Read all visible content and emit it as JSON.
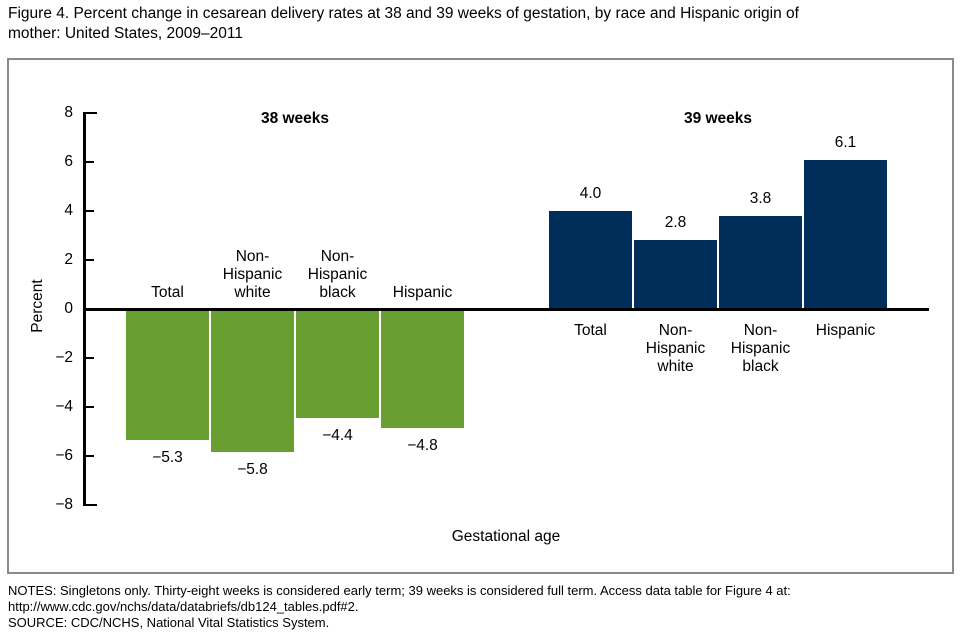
{
  "figure": {
    "title": "Figure 4. Percent change in cesarean delivery rates at 38 and 39 weeks of gestation, by race and Hispanic origin of\nmother: United States, 2009–2011",
    "notes": "NOTES: Singletons only. Thirty-eight weeks is considered early term; 39 weeks is considered full term. Access data table for Figure 4 at:\nhttp://www.cdc.gov/nchs/data/databriefs/db124_tables.pdf#2.",
    "source": "SOURCE: CDC/NCHS, National Vital Statistics System."
  },
  "chart_data": {
    "type": "bar",
    "title": "",
    "xlabel": "Gestational age",
    "ylabel": "Percent",
    "ylim": [
      -8,
      8
    ],
    "grid": false,
    "legend_position": "none",
    "axis_color": "#000000",
    "frame_color": "#8a8a8a",
    "yticks": [
      {
        "value": 8,
        "label": "8"
      },
      {
        "value": 6,
        "label": "6"
      },
      {
        "value": 4,
        "label": "4"
      },
      {
        "value": 2,
        "label": "2"
      },
      {
        "value": 0,
        "label": "0"
      },
      {
        "value": -2,
        "label": "−2"
      },
      {
        "value": -4,
        "label": "−4"
      },
      {
        "value": -6,
        "label": "−6"
      },
      {
        "value": -8,
        "label": "−8"
      }
    ],
    "groups": [
      {
        "label": "38 weeks",
        "color": "#699f31",
        "categories": [
          "Total",
          "Non-\nHispanic\nwhite",
          "Non-\nHispanic\nblack",
          "Hispanic"
        ],
        "values": [
          -5.3,
          -5.8,
          -4.4,
          -4.8
        ],
        "value_labels": [
          "−5.3",
          "−5.8",
          "−4.4",
          "−4.8"
        ]
      },
      {
        "label": "39 weeks",
        "color": "#002d5a",
        "categories": [
          "Total",
          "Non-\nHispanic\nwhite",
          "Non-\nHispanic\nblack",
          "Hispanic"
        ],
        "values": [
          4.0,
          2.8,
          3.8,
          6.1
        ],
        "value_labels": [
          "4.0",
          "2.8",
          "3.8",
          "6.1"
        ]
      }
    ]
  }
}
